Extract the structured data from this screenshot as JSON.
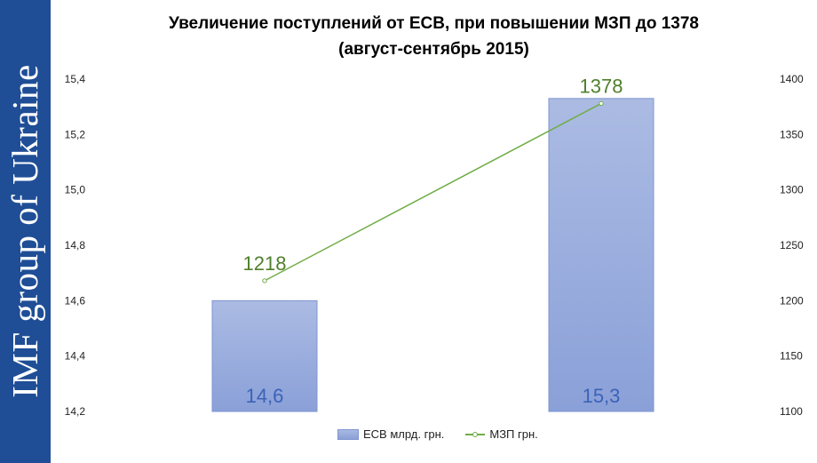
{
  "brand": {
    "sidebar_text": "IMF group of Ukraine",
    "sidebar_color": "#1f4e96"
  },
  "chart_data": {
    "type": "bar",
    "title_line1": "Увеличение поступлений от ЕСВ, при повышении МЗП до 1378",
    "title_line2": "(август-сентябрь 2015)",
    "categories": [
      "",
      ""
    ],
    "left_axis": {
      "ylim": [
        14.2,
        15.4
      ],
      "ticks": [
        "14,2",
        "14,4",
        "14,6",
        "14,8",
        "15,0",
        "15,2",
        "15,4"
      ]
    },
    "right_axis": {
      "ylim": [
        1100,
        1400
      ],
      "ticks": [
        "1100",
        "1150",
        "1200",
        "1250",
        "1300",
        "1350",
        "1400"
      ]
    },
    "series": [
      {
        "name": "ЕСВ млрд. грн.",
        "type": "bar",
        "axis": "left",
        "values": [
          14.6,
          15.33
        ],
        "labels": [
          "14,6",
          "15,3"
        ],
        "color": "#8ea3d9"
      },
      {
        "name": "МЗП грн.",
        "type": "line",
        "axis": "right",
        "values": [
          1218,
          1378
        ],
        "labels": [
          "1218",
          "1378"
        ],
        "color": "#70ad47"
      }
    ],
    "legend_position": "bottom"
  }
}
